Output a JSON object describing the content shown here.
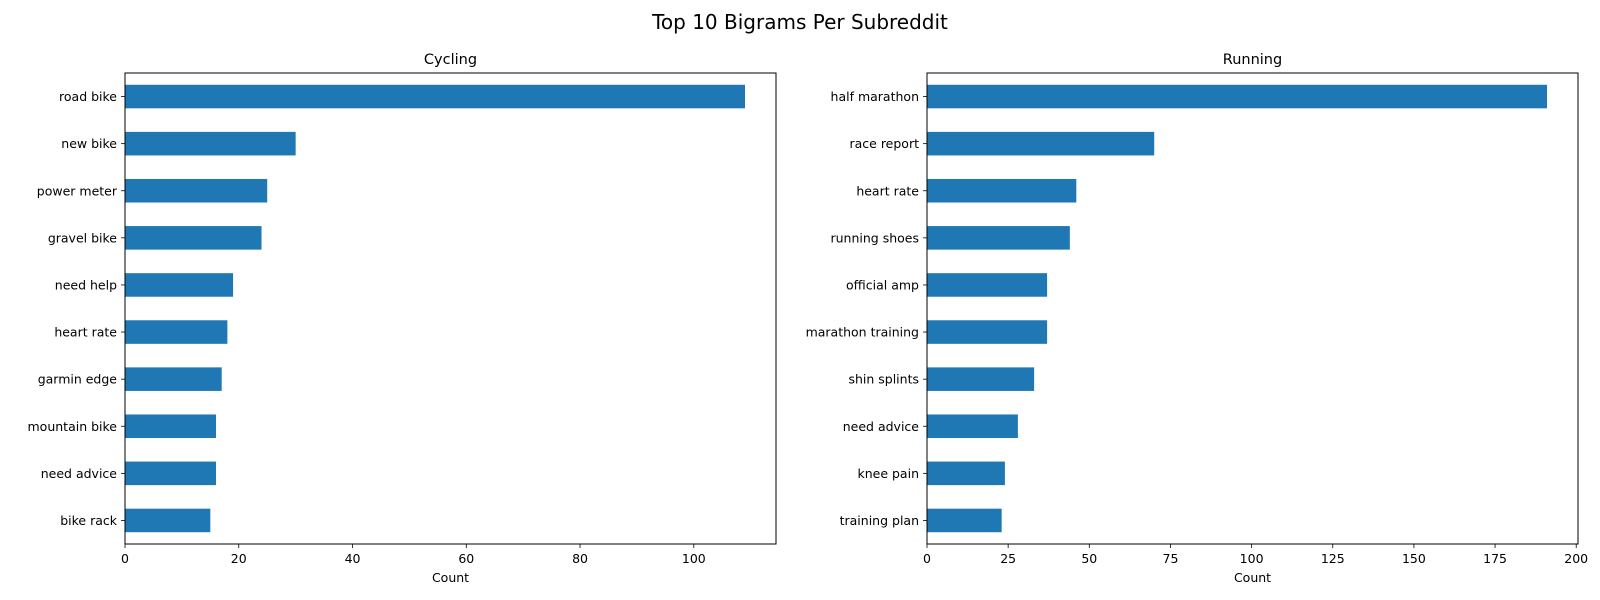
{
  "figure": {
    "title": "Top 10 Bigrams Per Subreddit"
  },
  "chart_data": [
    {
      "type": "bar",
      "orientation": "horizontal",
      "title": "Cycling",
      "xlabel": "Count",
      "ylabel": "",
      "xlim": [
        0,
        114.45
      ],
      "xticks": [
        0,
        20,
        40,
        60,
        80,
        100
      ],
      "grid": false,
      "bar_color": "#1f77b4",
      "categories": [
        "road bike",
        "new bike",
        "power meter",
        "gravel bike",
        "need help",
        "heart rate",
        "garmin edge",
        "mountain bike",
        "need advice",
        "bike rack"
      ],
      "values": [
        109,
        30,
        25,
        24,
        19,
        18,
        17,
        16,
        16,
        15
      ]
    },
    {
      "type": "bar",
      "orientation": "horizontal",
      "title": "Running",
      "xlabel": "Count",
      "ylabel": "",
      "xlim": [
        0,
        200.55
      ],
      "xticks": [
        0,
        25,
        50,
        75,
        100,
        125,
        150,
        175,
        200
      ],
      "grid": false,
      "bar_color": "#1f77b4",
      "categories": [
        "half marathon",
        "race report",
        "heart rate",
        "running shoes",
        "official amp",
        "marathon training",
        "shin splints",
        "need advice",
        "knee pain",
        "training plan"
      ],
      "values": [
        191,
        70,
        46,
        44,
        37,
        37,
        33,
        28,
        24,
        23
      ]
    }
  ]
}
